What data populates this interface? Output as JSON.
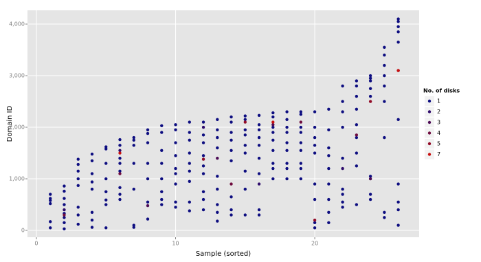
{
  "chart_data": {
    "type": "scatter",
    "x_label": "Sample (sorted)",
    "y_label": "Domain ID",
    "xlim": [
      -0.64,
      27.5
    ],
    "ylim": [
      -133,
      4267
    ],
    "xticks": [
      0,
      10,
      20
    ],
    "yticks": [
      0,
      {
        "value": 1000,
        "label": "1,000"
      },
      {
        "value": 2000,
        "label": "2,000"
      },
      {
        "value": 3000,
        "label": "3,000"
      },
      {
        "value": 4000,
        "label": "4,000"
      }
    ],
    "grid": true,
    "legend": "right",
    "legend_title": "No. of disks",
    "series": [
      {
        "name": "1",
        "color": "#0d0d80",
        "x": [
          1,
          1,
          1,
          1,
          1,
          1,
          2,
          2,
          2,
          2,
          2,
          2,
          2,
          2,
          3,
          3,
          3,
          3,
          3,
          3,
          3,
          3,
          4,
          4,
          4,
          4,
          4,
          4,
          4,
          4,
          5,
          5,
          5,
          5,
          5,
          5,
          5,
          5,
          6,
          6,
          6,
          6,
          6,
          6,
          6,
          6,
          7,
          7,
          7,
          7,
          7,
          7,
          7,
          8,
          8,
          8,
          8,
          8,
          8,
          8,
          9,
          9,
          9,
          9,
          9,
          9,
          9,
          9,
          10,
          10,
          10,
          10,
          10,
          10,
          10,
          10,
          10,
          11,
          11,
          11,
          11,
          11,
          11,
          11,
          11,
          11,
          12,
          12,
          12,
          12,
          12,
          12,
          12,
          12,
          12,
          13,
          13,
          13,
          13,
          13,
          13,
          13,
          13,
          13,
          14,
          14,
          14,
          14,
          14,
          14,
          14,
          14,
          14,
          15,
          15,
          15,
          15,
          15,
          15,
          15,
          15,
          15,
          16,
          16,
          16,
          16,
          16,
          16,
          16,
          16,
          16,
          17,
          17,
          17,
          17,
          17,
          17,
          17,
          17,
          17,
          18,
          18,
          18,
          18,
          18,
          18,
          18,
          18,
          18,
          19,
          19,
          19,
          19,
          19,
          19,
          19,
          19,
          19,
          20,
          20,
          20,
          20,
          20,
          20,
          20,
          20,
          20,
          21,
          21,
          21,
          21,
          21,
          21,
          21,
          21,
          21,
          22,
          22,
          22,
          22,
          22,
          22,
          22,
          22,
          22,
          23,
          23,
          23,
          23,
          23,
          23,
          23,
          23,
          23,
          24,
          24,
          24,
          24,
          24,
          24,
          24,
          24,
          25,
          25,
          25,
          25,
          25,
          25,
          25,
          25,
          25,
          26,
          26,
          26,
          26,
          26,
          26,
          26,
          26,
          26,
          26
        ],
        "values": [
          50,
          170,
          520,
          580,
          620,
          700,
          30,
          150,
          250,
          330,
          500,
          620,
          760,
          860,
          120,
          300,
          450,
          870,
          1000,
          1150,
          1280,
          1380,
          60,
          200,
          350,
          800,
          940,
          1100,
          1350,
          1480,
          50,
          500,
          590,
          750,
          1000,
          1300,
          1580,
          1620,
          600,
          700,
          830,
          1150,
          1300,
          1400,
          1650,
          1760,
          60,
          100,
          800,
          1300,
          1650,
          1750,
          1800,
          220,
          550,
          1000,
          1300,
          1700,
          1880,
          1950,
          500,
          600,
          750,
          1000,
          1300,
          1550,
          1900,
          2030,
          450,
          550,
          900,
          1100,
          1200,
          1450,
          1700,
          1950,
          2050,
          380,
          550,
          950,
          1150,
          1300,
          1500,
          1750,
          1900,
          2100,
          400,
          600,
          750,
          1100,
          1250,
          1450,
          1700,
          1850,
          2100,
          180,
          350,
          500,
          800,
          1050,
          1600,
          1800,
          1950,
          2150,
          300,
          400,
          650,
          1350,
          1550,
          1750,
          1900,
          2100,
          2200,
          300,
          800,
          1150,
          1500,
          1650,
          1850,
          1950,
          2150,
          2220,
          300,
          400,
          1100,
          1400,
          1650,
          1800,
          1950,
          2050,
          2230,
          1000,
          1200,
          1300,
          1550,
          1750,
          1900,
          2000,
          2200,
          2280,
          1000,
          1200,
          1300,
          1550,
          1700,
          1900,
          2000,
          2150,
          2300,
          1000,
          1200,
          1300,
          1550,
          1700,
          1900,
          2000,
          2250,
          2300,
          50,
          150,
          600,
          900,
          1500,
          1650,
          1800,
          2000,
          2300,
          150,
          350,
          600,
          900,
          1200,
          1450,
          1600,
          1950,
          2350,
          450,
          550,
          700,
          800,
          1400,
          2000,
          2300,
          2500,
          2800,
          500,
          1250,
          1500,
          1800,
          2050,
          2350,
          2600,
          2800,
          2900,
          600,
          700,
          1050,
          2600,
          2750,
          2900,
          2950,
          3000,
          250,
          350,
          1800,
          2500,
          2800,
          3000,
          3200,
          3400,
          3550,
          100,
          400,
          550,
          900,
          2150,
          3650,
          3850,
          3950,
          4050,
          4100
        ]
      },
      {
        "name": "2",
        "color": "#2e0c6c",
        "x": [
          2,
          6,
          12,
          16,
          22
        ],
        "values": [
          400,
          1550,
          2000,
          900,
          1200
        ]
      },
      {
        "name": "3",
        "color": "#4d0c55",
        "x": [
          8,
          13,
          17,
          24
        ],
        "values": [
          480,
          1400,
          2050,
          1000
        ]
      },
      {
        "name": "4",
        "color": "#6e0b3e",
        "x": [
          2,
          6,
          14,
          19,
          23,
          26
        ],
        "values": [
          300,
          1100,
          900,
          2100,
          1850,
          3100
        ]
      },
      {
        "name": "5",
        "color": "#920b27",
        "x": [
          12,
          15,
          20,
          24
        ],
        "values": [
          1380,
          2100,
          200,
          2500
        ]
      },
      {
        "name": "7",
        "color": "#c81010",
        "x": [
          6,
          17,
          26
        ],
        "values": [
          1500,
          2100,
          3100
        ]
      }
    ]
  }
}
